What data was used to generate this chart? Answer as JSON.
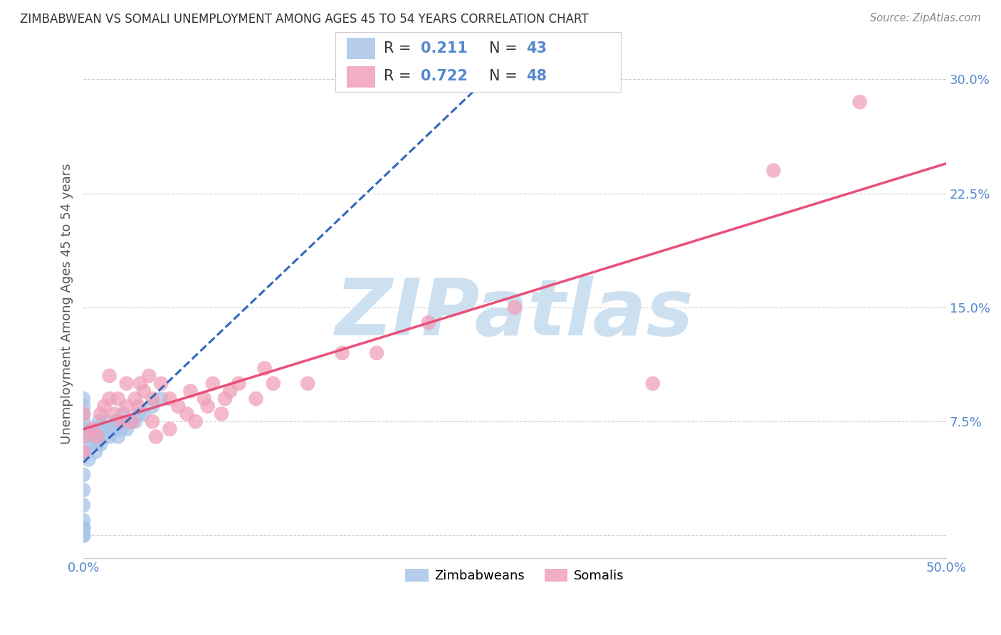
{
  "title": "ZIMBABWEAN VS SOMALI UNEMPLOYMENT AMONG AGES 45 TO 54 YEARS CORRELATION CHART",
  "source": "Source: ZipAtlas.com",
  "ylabel": "Unemployment Among Ages 45 to 54 years",
  "xlim": [
    0.0,
    0.5
  ],
  "ylim": [
    -0.015,
    0.32
  ],
  "xtick_positions": [
    0.0,
    0.1,
    0.2,
    0.3,
    0.4,
    0.5
  ],
  "xticklabels": [
    "0.0%",
    "",
    "",
    "",
    "",
    "50.0%"
  ],
  "ytick_positions": [
    0.0,
    0.075,
    0.15,
    0.225,
    0.3
  ],
  "yticklabels": [
    "",
    "7.5%",
    "15.0%",
    "22.5%",
    "30.0%"
  ],
  "zim_R": "0.211",
  "zim_N": "43",
  "som_R": "0.722",
  "som_N": "48",
  "zim_color": "#a8c4e8",
  "som_color": "#f0a0b8",
  "zim_line_color": "#3366bb",
  "som_line_color": "#e8507a",
  "watermark_text": "ZIPatlas",
  "watermark_color": "#cce0f0",
  "background_color": "#ffffff",
  "tick_color": "#5588cc",
  "legend_label_color": "#333333",
  "zim_x": [
    0.0,
    0.0,
    0.0,
    0.0,
    0.0,
    0.0,
    0.0,
    0.0,
    0.0,
    0.0,
    0.0,
    0.0,
    0.0,
    0.0,
    0.0,
    0.003,
    0.003,
    0.005,
    0.005,
    0.007,
    0.007,
    0.008,
    0.008,
    0.009,
    0.01,
    0.01,
    0.012,
    0.013,
    0.015,
    0.015,
    0.018,
    0.019,
    0.02,
    0.02,
    0.022,
    0.023,
    0.025,
    0.028,
    0.03,
    0.032,
    0.035,
    0.04,
    0.045
  ],
  "zim_y": [
    0.0,
    0.005,
    0.01,
    0.02,
    0.03,
    0.04,
    0.055,
    0.065,
    0.07,
    0.075,
    0.08,
    0.085,
    0.09,
    0.0,
    0.005,
    0.065,
    0.05,
    0.06,
    0.07,
    0.055,
    0.065,
    0.07,
    0.06,
    0.075,
    0.06,
    0.07,
    0.065,
    0.075,
    0.065,
    0.07,
    0.07,
    0.075,
    0.065,
    0.075,
    0.07,
    0.08,
    0.07,
    0.075,
    0.075,
    0.08,
    0.08,
    0.085,
    0.09
  ],
  "som_x": [
    0.0,
    0.0,
    0.0,
    0.005,
    0.008,
    0.01,
    0.012,
    0.015,
    0.015,
    0.018,
    0.02,
    0.022,
    0.025,
    0.025,
    0.028,
    0.03,
    0.032,
    0.033,
    0.035,
    0.038,
    0.04,
    0.04,
    0.042,
    0.045,
    0.05,
    0.05,
    0.055,
    0.06,
    0.062,
    0.065,
    0.07,
    0.072,
    0.075,
    0.08,
    0.082,
    0.085,
    0.09,
    0.1,
    0.105,
    0.11,
    0.13,
    0.15,
    0.17,
    0.2,
    0.25,
    0.33,
    0.4,
    0.45
  ],
  "som_y": [
    0.055,
    0.065,
    0.08,
    0.07,
    0.065,
    0.08,
    0.085,
    0.09,
    0.105,
    0.08,
    0.09,
    0.075,
    0.085,
    0.1,
    0.075,
    0.09,
    0.085,
    0.1,
    0.095,
    0.105,
    0.075,
    0.09,
    0.065,
    0.1,
    0.07,
    0.09,
    0.085,
    0.08,
    0.095,
    0.075,
    0.09,
    0.085,
    0.1,
    0.08,
    0.09,
    0.095,
    0.1,
    0.09,
    0.11,
    0.1,
    0.1,
    0.12,
    0.12,
    0.14,
    0.15,
    0.1,
    0.24,
    0.285
  ]
}
